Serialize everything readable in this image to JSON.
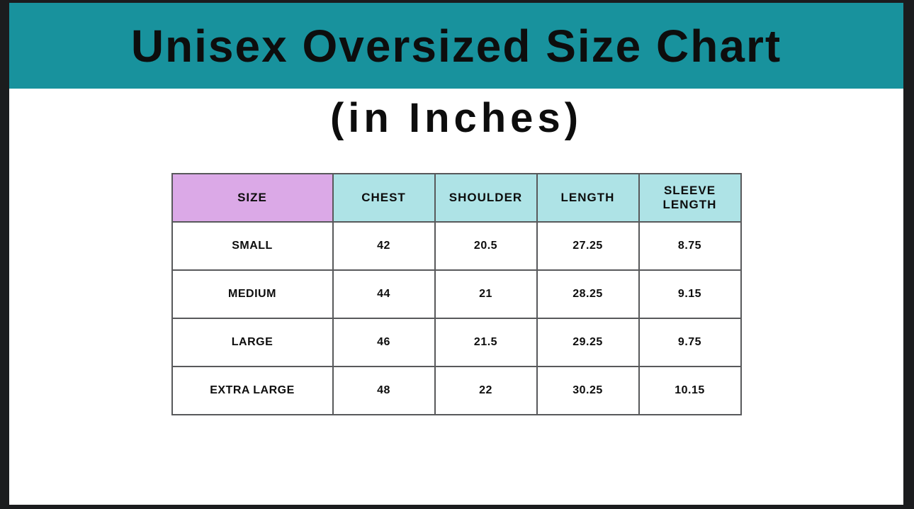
{
  "page": {
    "title": "Unisex Oversized Size Chart",
    "subtitle": "(in Inches)"
  },
  "colors": {
    "frame": "#1b1c1e",
    "banner": "#18929d",
    "size_header_bg": "#dba9e7",
    "measure_header_bg": "#aee3e6",
    "border": "#58595b",
    "text": "#0d0d0d"
  },
  "chart_data": {
    "type": "table",
    "title": "Unisex Oversized Size Chart (in Inches)",
    "columns": [
      "SIZE",
      "CHEST",
      "SHOULDER",
      "LENGTH",
      "SLEEVE LENGTH"
    ],
    "rows": [
      [
        "SMALL",
        "42",
        "20.5",
        "27.25",
        "8.75"
      ],
      [
        "MEDIUM",
        "44",
        "21",
        "28.25",
        "9.15"
      ],
      [
        "LARGE",
        "46",
        "21.5",
        "29.25",
        "9.75"
      ],
      [
        "EXTRA LARGE",
        "48",
        "22",
        "30.25",
        "10.15"
      ]
    ],
    "units": "inches"
  }
}
